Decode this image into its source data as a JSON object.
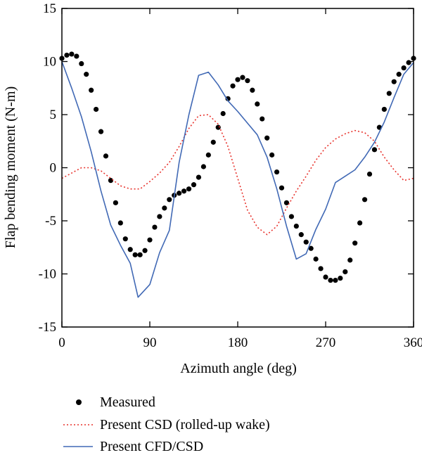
{
  "chart_data": {
    "type": "line",
    "xlabel": "Azimuth angle (deg)",
    "ylabel": "Flap bending moment (N-m)",
    "xlim": [
      0,
      360
    ],
    "ylim": [
      -15,
      15
    ],
    "x_ticks": [
      0,
      90,
      180,
      270,
      360
    ],
    "y_ticks": [
      15,
      10,
      5,
      0,
      -5,
      -10,
      -15
    ],
    "grid": false,
    "legend_position": "bottom",
    "series": [
      {
        "name": "Measured",
        "style": "markers",
        "color": "#000000",
        "x": [
          0,
          5,
          10,
          15,
          20,
          25,
          30,
          35,
          40,
          45,
          50,
          55,
          60,
          65,
          70,
          75,
          80,
          85,
          90,
          95,
          100,
          105,
          110,
          115,
          120,
          125,
          130,
          135,
          140,
          145,
          150,
          155,
          160,
          165,
          170,
          175,
          180,
          185,
          190,
          195,
          200,
          205,
          210,
          215,
          220,
          225,
          230,
          235,
          240,
          245,
          250,
          255,
          260,
          265,
          270,
          275,
          280,
          285,
          290,
          295,
          300,
          305,
          310,
          315,
          320,
          325,
          330,
          335,
          340,
          345,
          350,
          355,
          360
        ],
        "y": [
          10.3,
          10.6,
          10.7,
          10.5,
          9.8,
          8.8,
          7.3,
          5.5,
          3.4,
          1.1,
          -1.2,
          -3.3,
          -5.2,
          -6.7,
          -7.7,
          -8.2,
          -8.2,
          -7.8,
          -6.8,
          -5.6,
          -4.6,
          -3.8,
          -3.0,
          -2.6,
          -2.4,
          -2.2,
          -2.0,
          -1.6,
          -0.9,
          0.1,
          1.2,
          2.4,
          3.8,
          5.1,
          6.5,
          7.7,
          8.3,
          8.5,
          8.2,
          7.3,
          6.0,
          4.6,
          2.8,
          1.2,
          -0.4,
          -1.9,
          -3.3,
          -4.6,
          -5.5,
          -6.3,
          -7.0,
          -7.6,
          -8.6,
          -9.5,
          -10.3,
          -10.6,
          -10.6,
          -10.4,
          -9.8,
          -8.7,
          -7.1,
          -5.2,
          -3.0,
          -0.6,
          1.7,
          3.8,
          5.5,
          7.0,
          8.1,
          8.8,
          9.4,
          9.9,
          10.3
        ]
      },
      {
        "name": "Present CSD (rolled-up wake)",
        "style": "dotted",
        "color": "#e8332d",
        "x": [
          0,
          10,
          20,
          30,
          40,
          50,
          60,
          70,
          80,
          90,
          100,
          110,
          120,
          130,
          140,
          150,
          160,
          170,
          180,
          190,
          200,
          210,
          220,
          230,
          240,
          250,
          260,
          270,
          280,
          290,
          300,
          310,
          320,
          330,
          340,
          350,
          360
        ],
        "y": [
          -1.0,
          -0.5,
          0.0,
          0.0,
          -0.3,
          -1.0,
          -1.7,
          -2.0,
          -2.0,
          -1.3,
          -0.5,
          0.5,
          2.0,
          3.7,
          4.9,
          5.0,
          4.1,
          2.0,
          -1.0,
          -4.0,
          -5.6,
          -6.3,
          -5.5,
          -3.8,
          -2.2,
          -0.8,
          0.7,
          1.9,
          2.7,
          3.2,
          3.5,
          3.3,
          2.5,
          1.0,
          -0.2,
          -1.2,
          -1.0
        ]
      },
      {
        "name": "Present CFD/CSD",
        "style": "solid",
        "color": "#4169b5",
        "x": [
          0,
          10,
          20,
          30,
          40,
          50,
          60,
          70,
          78,
          90,
          100,
          110,
          120,
          130,
          140,
          150,
          160,
          170,
          180,
          190,
          200,
          210,
          220,
          230,
          240,
          250,
          260,
          270,
          280,
          290,
          300,
          310,
          320,
          330,
          340,
          350,
          360
        ],
        "y": [
          10.0,
          7.5,
          4.8,
          1.5,
          -2.2,
          -5.4,
          -7.3,
          -9.0,
          -12.2,
          -11.0,
          -8.0,
          -5.9,
          0.5,
          5.0,
          8.7,
          9.0,
          7.8,
          6.3,
          5.3,
          4.2,
          3.1,
          1.0,
          -2.0,
          -5.5,
          -8.6,
          -8.1,
          -5.8,
          -3.9,
          -1.4,
          -0.8,
          -0.2,
          1.0,
          2.4,
          4.3,
          6.6,
          8.8,
          9.9
        ]
      }
    ]
  }
}
